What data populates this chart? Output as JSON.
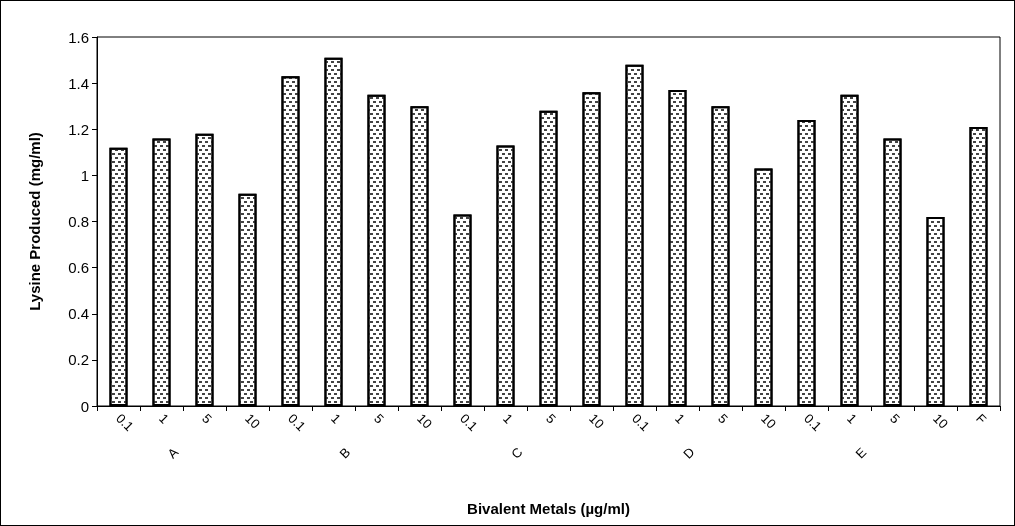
{
  "chart_data": {
    "type": "bar",
    "xlabel": "Bivalent Metals (µg/ml)",
    "ylabel": "Lysine Produced (mg/ml)",
    "categories": [
      "0.1",
      "1",
      "5",
      "10",
      "0.1",
      "1",
      "5",
      "10",
      "0.1",
      "1",
      "5",
      "10",
      "0.1",
      "1",
      "5",
      "10",
      "0.1",
      "1",
      "5",
      "10",
      "F"
    ],
    "values": [
      1.12,
      1.16,
      1.18,
      0.92,
      1.43,
      1.51,
      1.35,
      1.3,
      0.83,
      1.13,
      1.28,
      1.36,
      1.48,
      1.37,
      1.3,
      1.03,
      1.24,
      1.35,
      1.16,
      0.82,
      1.21
    ],
    "color": "#ffffff",
    "annotations": [
      "A",
      "B",
      "C",
      "D",
      "E"
    ],
    "ylim": [
      0,
      1.6
    ],
    "yticks": [
      0,
      0.2,
      0.4,
      0.6,
      0.8,
      1,
      1.2,
      1.4,
      1.6
    ],
    "grid": false
  }
}
